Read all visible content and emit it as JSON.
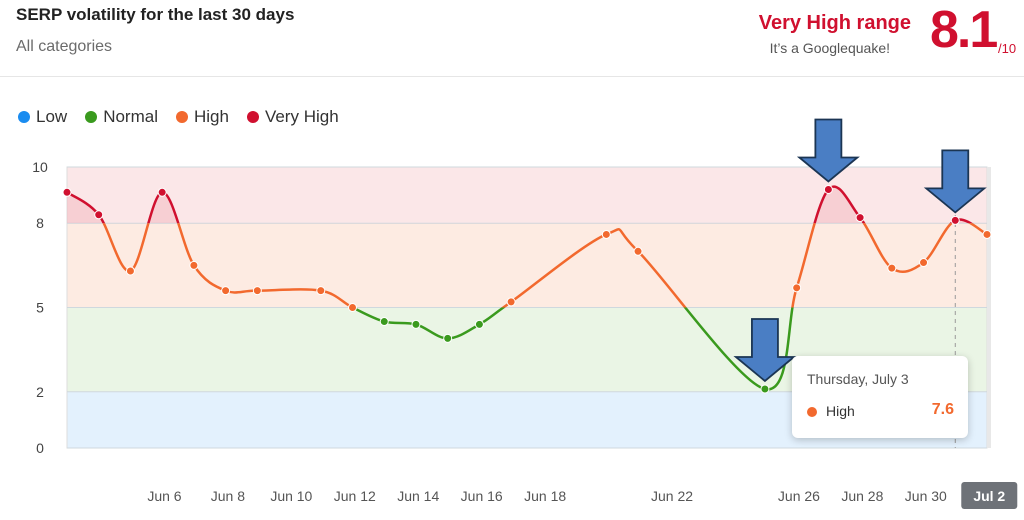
{
  "header": {
    "title": "SERP volatility for the last 30 days",
    "subtitle": "All categories",
    "range_label": "Very High range",
    "range_sub": "It’s a Googlequake!",
    "score": "8.1",
    "score_max": "/10"
  },
  "legend": [
    {
      "label": "Low",
      "color": "#1a8cf0"
    },
    {
      "label": "Normal",
      "color": "#3a9a1e"
    },
    {
      "label": "High",
      "color": "#f2692e"
    },
    {
      "label": "Very High",
      "color": "#d0102f"
    }
  ],
  "tooltip": {
    "date": "Thursday, July 3",
    "series": "High",
    "value": "7.6",
    "color": "#f2692e"
  },
  "chart_data": {
    "type": "line",
    "ylim": [
      0,
      10
    ],
    "y_ticks": [
      0,
      2,
      5,
      8,
      10
    ],
    "x_ticks": [
      "Jun 6",
      "Jun 8",
      "Jun 10",
      "Jun 12",
      "Jun 14",
      "Jun 16",
      "Jun 18",
      "Jun 22",
      "Jun 26",
      "Jun 28",
      "Jun 30",
      "Jul 2"
    ],
    "highlighted_x_tick": "Jul 2",
    "bands": [
      {
        "name": "Low",
        "from": 0,
        "to": 2,
        "color": "#cce6fb"
      },
      {
        "name": "Normal",
        "from": 2,
        "to": 5,
        "color": "#d9ecd0"
      },
      {
        "name": "High",
        "from": 5,
        "to": 8,
        "color": "#fbdacb"
      },
      {
        "name": "Very High",
        "from": 8,
        "to": 10,
        "color": "#f7d3d6"
      }
    ],
    "x": [
      "Jun 4",
      "Jun 5",
      "Jun 6",
      "Jun 7",
      "Jun 8",
      "Jun 9",
      "Jun 10",
      "Jun 12",
      "Jun 13",
      "Jun 14",
      "Jun 15",
      "Jun 16",
      "Jun 17",
      "Jun 18",
      "Jun 21",
      "Jun 22",
      "Jun 26",
      "Jun 27",
      "Jun 28",
      "Jun 29",
      "Jun 30",
      "Jul 1",
      "Jul 2",
      "Jul 3"
    ],
    "dayIndex": [
      0,
      1,
      2,
      3,
      4,
      5,
      6,
      8,
      9,
      10,
      11,
      12,
      13,
      14,
      17,
      18,
      22,
      23,
      24,
      25,
      26,
      27,
      28,
      29
    ],
    "values": [
      9.1,
      8.3,
      6.3,
      9.1,
      6.5,
      5.6,
      5.6,
      5.6,
      5.0,
      4.5,
      4.4,
      3.9,
      4.4,
      5.2,
      7.6,
      7.0,
      2.1,
      5.7,
      9.2,
      8.2,
      6.4,
      6.6,
      8.1,
      7.6
    ],
    "markers": [
      {
        "x": "Jun 26",
        "y": 2.1
      },
      {
        "x": "Jun 28",
        "y": 9.2
      },
      {
        "x": "Jul 2",
        "y": 8.1
      }
    ]
  }
}
